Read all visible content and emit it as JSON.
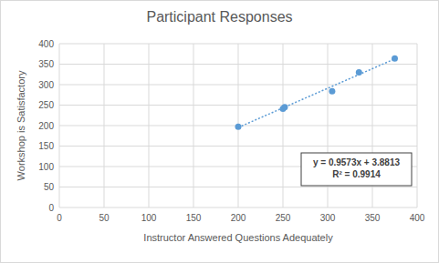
{
  "chart_data": {
    "type": "scatter",
    "title": "Participant Responses",
    "x_label": "Instructor Answered Questions Adequately",
    "y_label": "Workshop is Satisfactory",
    "series": [
      {
        "type": "scatter",
        "color": "#5b9bd5",
        "marker": "circle",
        "x": [
          200,
          250,
          252,
          305,
          335,
          375
        ],
        "values": [
          197,
          241,
          245,
          284,
          330,
          364
        ]
      },
      {
        "type": "line",
        "color": "#5b9bd5",
        "line_style": "dotted",
        "x": [
          200,
          375
        ],
        "values": [
          195.3,
          362.9
        ]
      }
    ],
    "annotations": [
      "y = 0.9573x + 3.8813",
      "R² = 0.9914"
    ],
    "xlim": [
      0,
      400
    ],
    "xticks": [
      0,
      50,
      100,
      150,
      200,
      250,
      300,
      350,
      400
    ],
    "ylim": [
      0,
      400
    ],
    "yticks": [
      0,
      50,
      100,
      150,
      200,
      250,
      300,
      350,
      400
    ],
    "grid": true
  }
}
